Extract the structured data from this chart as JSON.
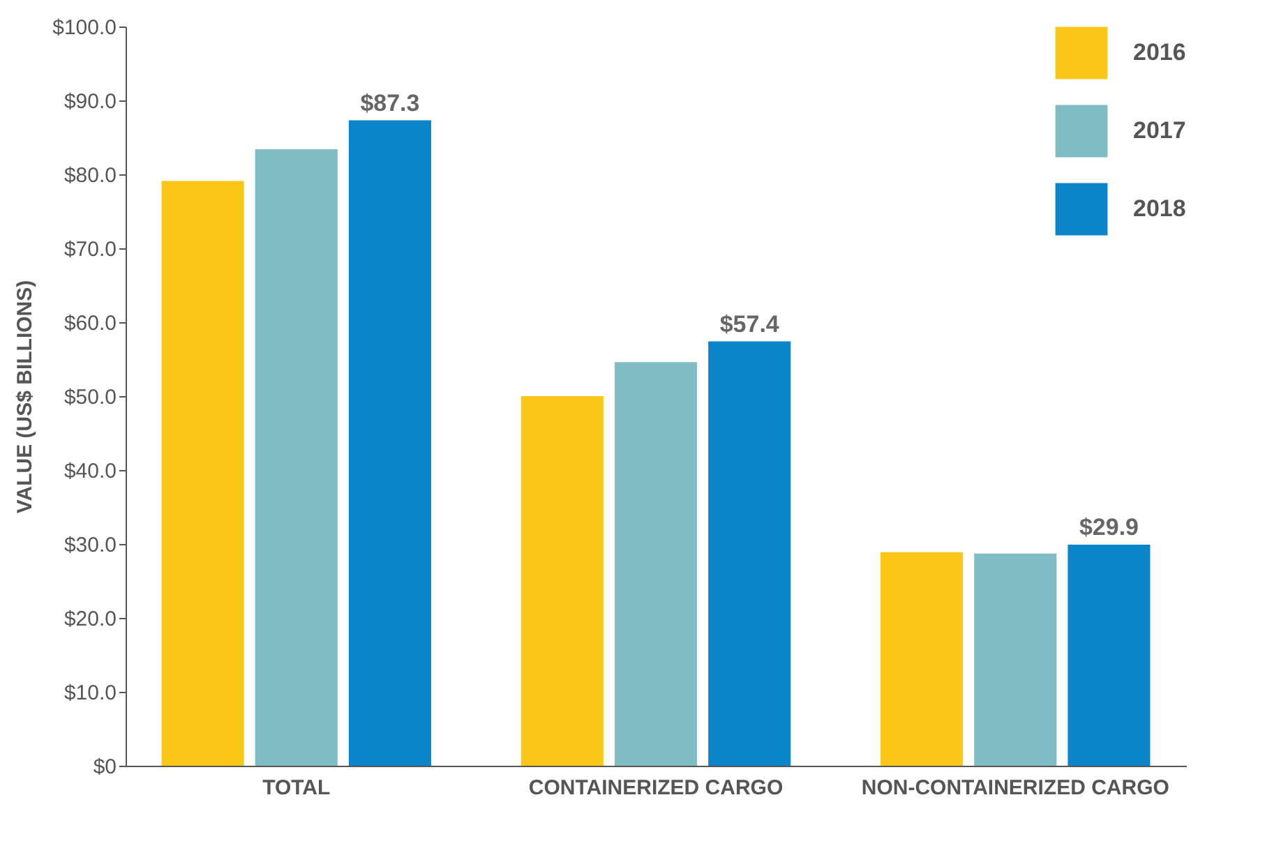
{
  "chart_data": {
    "type": "bar",
    "ylabel": "VALUE (US$ BILLIONS)",
    "categories": [
      "TOTAL",
      "CONTAINERIZED CARGO",
      "NON-CONTAINERIZED CARGO"
    ],
    "series": [
      {
        "name": "2016",
        "color": "#fbc717",
        "values": [
          79.1,
          50.0,
          28.9
        ]
      },
      {
        "name": "2017",
        "color": "#7fbcc4",
        "values": [
          83.4,
          54.6,
          28.7
        ]
      },
      {
        "name": "2018",
        "color": "#0a85c9",
        "values": [
          87.3,
          57.4,
          29.9
        ],
        "value_labels": [
          "$87.3",
          "$57.4",
          "$29.9"
        ]
      }
    ],
    "ylim": [
      0,
      100
    ],
    "yticks": [
      {
        "value": 0,
        "label": "$0"
      },
      {
        "value": 10,
        "label": "$10.0"
      },
      {
        "value": 20,
        "label": "$20.0"
      },
      {
        "value": 30,
        "label": "$30.0"
      },
      {
        "value": 40,
        "label": "$40.0"
      },
      {
        "value": 50,
        "label": "$50.0"
      },
      {
        "value": 60,
        "label": "$60.0"
      },
      {
        "value": 70,
        "label": "$70.0"
      },
      {
        "value": 80,
        "label": "$80.0"
      },
      {
        "value": 90,
        "label": "$90.0"
      },
      {
        "value": 100,
        "label": "$100.0"
      }
    ],
    "legend": "top right"
  }
}
